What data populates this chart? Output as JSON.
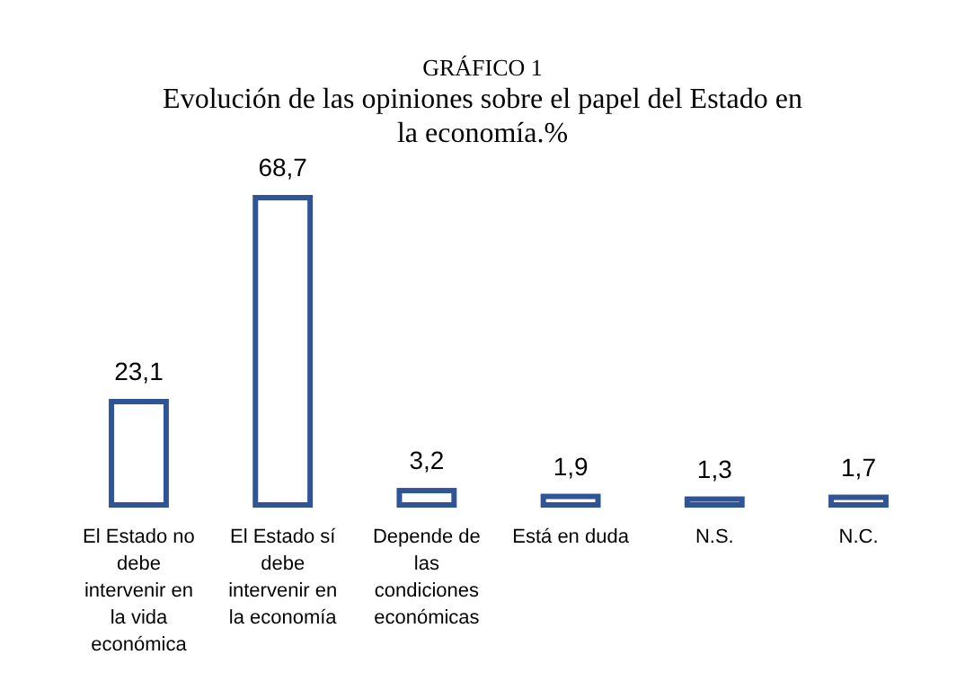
{
  "chart_data": {
    "type": "bar",
    "title": "GRÁFICO 1",
    "subtitle": "Evolución de las opiniones sobre el papel del Estado en la economía.%",
    "categories": [
      "El Estado no debe intervenir en la vida económica",
      "El Estado sí debe intervenir en la economía",
      "Depende de las condiciones económicas",
      "Está en duda",
      "N.S.",
      "N.C."
    ],
    "values": [
      23.1,
      68.7,
      3.2,
      1.9,
      1.3,
      1.7
    ],
    "color": "#2f5597",
    "data_labels": true,
    "value_labels": [
      "23,1",
      "68,7",
      "3,2",
      "1,9",
      "1,3",
      "1,7"
    ]
  }
}
